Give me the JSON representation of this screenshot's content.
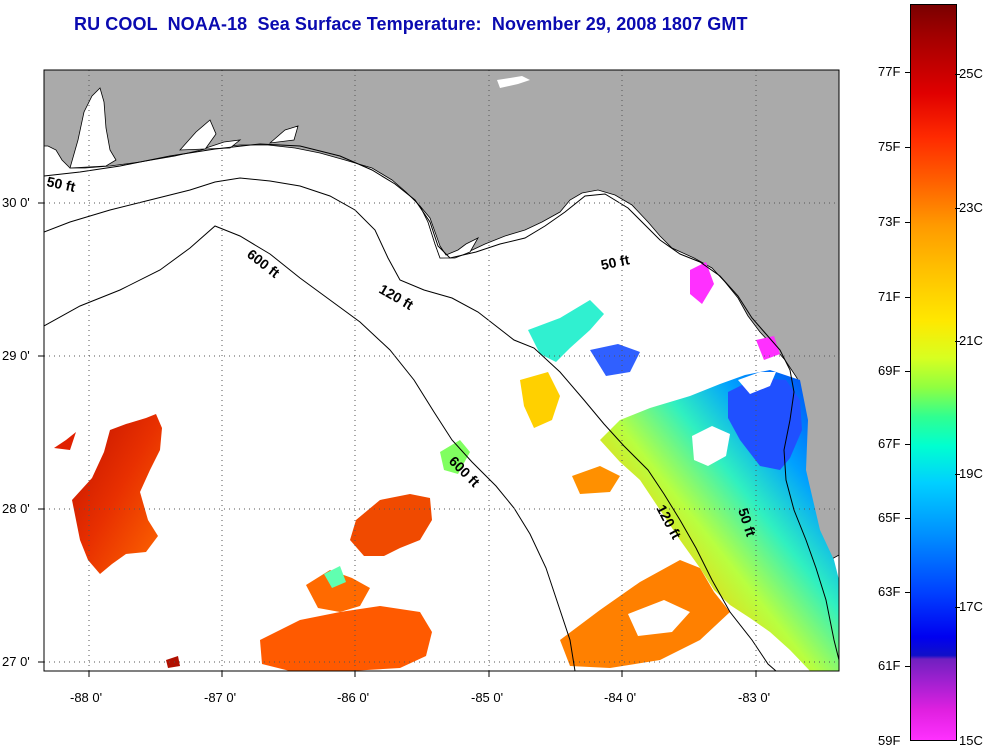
{
  "title": "RU COOL  NOAA-18  Sea Surface Temperature:  November 29, 2008 1807 GMT",
  "colors": {
    "land": "#aaaaaa",
    "title": "#0a0ab0",
    "contour": "#000000"
  },
  "latitude_labels": [
    "30 0'",
    "29 0'",
    "28 0'",
    "27 0'"
  ],
  "longitude_labels": [
    "-88 0'",
    "-87 0'",
    "-86 0'",
    "-85 0'",
    "-84 0'",
    "-83 0'"
  ],
  "isobath_labels": [
    {
      "text": "50 ft",
      "id": "isobath-50ft-west"
    },
    {
      "text": "600 ft",
      "id": "isobath-600ft-north"
    },
    {
      "text": "120 ft",
      "id": "isobath-120ft-north"
    },
    {
      "text": "50 ft",
      "id": "isobath-50ft-bigbend"
    },
    {
      "text": "600 ft",
      "id": "isobath-600ft-south"
    },
    {
      "text": "120 ft",
      "id": "isobath-120ft-south"
    },
    {
      "text": "50 ft",
      "id": "isobath-50ft-south"
    }
  ],
  "colorbar": {
    "fahrenheit": [
      "77F",
      "75F",
      "73F",
      "71F",
      "69F",
      "67F",
      "65F",
      "63F",
      "61F",
      "59F"
    ],
    "celsius": [
      "25C",
      "23C",
      "21C",
      "19C",
      "17C",
      "15C"
    ]
  }
}
